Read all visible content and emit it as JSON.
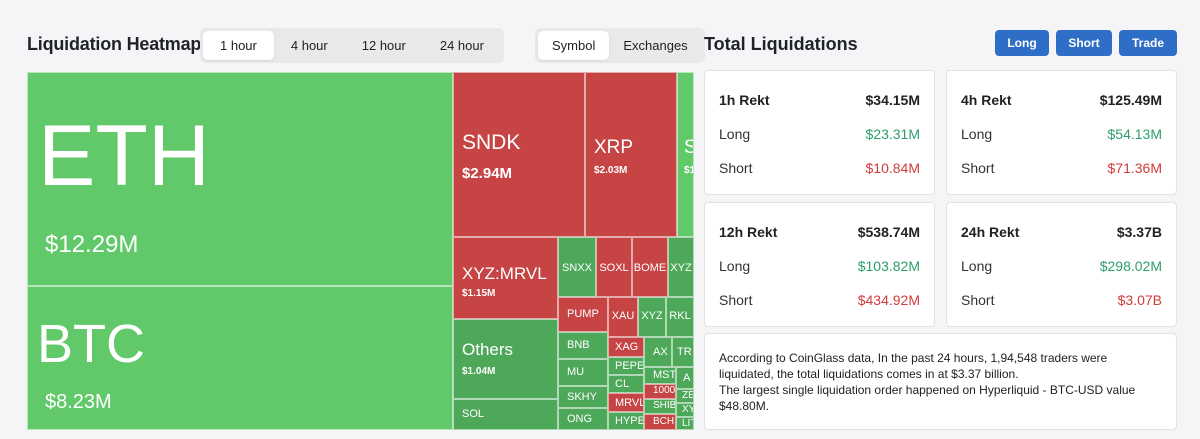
{
  "heatmap": {
    "title": "Liquidation Heatmap",
    "time_tabs": [
      "1 hour",
      "4 hour",
      "12 hour",
      "24 hour"
    ],
    "active_time_tab": "1 hour",
    "view_tabs": [
      "Symbol",
      "Exchanges"
    ],
    "active_view_tab": "Symbol",
    "cells": {
      "eth": {
        "name": "ETH",
        "value": "$12.29M"
      },
      "btc": {
        "name": "BTC",
        "value": "$8.23M"
      },
      "sndk": {
        "name": "SNDK",
        "value": "$2.94M"
      },
      "xrp": {
        "name": "XRP",
        "value": "$2.03M"
      },
      "s_partial": {
        "name": "S",
        "value": "$1"
      },
      "xyz_mrvl": {
        "name": "XYZ:MRVL",
        "value": "$1.15M"
      },
      "others": {
        "name": "Others",
        "value": "$1.04M"
      },
      "sol": {
        "name": "SOL"
      },
      "snxx": {
        "name": "SNXX"
      },
      "soxl": {
        "name": "SOXL"
      },
      "bome": {
        "name": "BOME"
      },
      "xyz_a": {
        "name": "XYZ"
      },
      "pump": {
        "name": "PUMP"
      },
      "xau": {
        "name": "XAU"
      },
      "xyz_b": {
        "name": "XYZ"
      },
      "rkl": {
        "name": "RKL"
      },
      "bnb": {
        "name": "BNB"
      },
      "xag": {
        "name": "XAG"
      },
      "pepe": {
        "name": "PEPE"
      },
      "mu": {
        "name": "MU"
      },
      "cl": {
        "name": "CL"
      },
      "skhy": {
        "name": "SKHY"
      },
      "mrvl": {
        "name": "MRVL"
      },
      "ong": {
        "name": "ONG"
      },
      "hype": {
        "name": "HYPE"
      },
      "mst": {
        "name": "MST"
      },
      "t100": {
        "name": "1000"
      },
      "shib": {
        "name": "SHIB"
      },
      "bch": {
        "name": "BCH"
      },
      "ax": {
        "name": "AX"
      },
      "tr": {
        "name": "TR"
      },
      "a": {
        "name": "A"
      },
      "ze": {
        "name": "ZE"
      },
      "xy": {
        "name": "XY"
      },
      "lit": {
        "name": "LIT"
      }
    }
  },
  "totals": {
    "title": "Total Liquidations",
    "buttons": {
      "long": "Long",
      "short": "Short",
      "trade": "Trade"
    },
    "cards": [
      {
        "label": "1h Rekt",
        "total": "$34.15M",
        "long_label": "Long",
        "long": "$23.31M",
        "short_label": "Short",
        "short": "$10.84M"
      },
      {
        "label": "4h Rekt",
        "total": "$125.49M",
        "long_label": "Long",
        "long": "$54.13M",
        "short_label": "Short",
        "short": "$71.36M"
      },
      {
        "label": "12h Rekt",
        "total": "$538.74M",
        "long_label": "Long",
        "long": "$103.82M",
        "short_label": "Short",
        "short": "$434.92M"
      },
      {
        "label": "24h Rekt",
        "total": "$3.37B",
        "long_label": "Long",
        "long": "$298.02M",
        "short_label": "Short",
        "short": "$3.07B"
      }
    ],
    "summary": {
      "line1": "According to CoinGlass data, In the past 24 hours, 1,94,548 traders were liquidated, the total liquidations comes in at $3.37 billion.",
      "line2": "The largest single liquidation order happened on Hyperliquid - BTC-USD value $48.80M."
    }
  },
  "colors": {
    "long_green": "#62c96a",
    "short_red": "#c64444",
    "accent_blue": "#2f6ec7",
    "up_text": "#2e9e6a",
    "down_text": "#d23b3b"
  }
}
